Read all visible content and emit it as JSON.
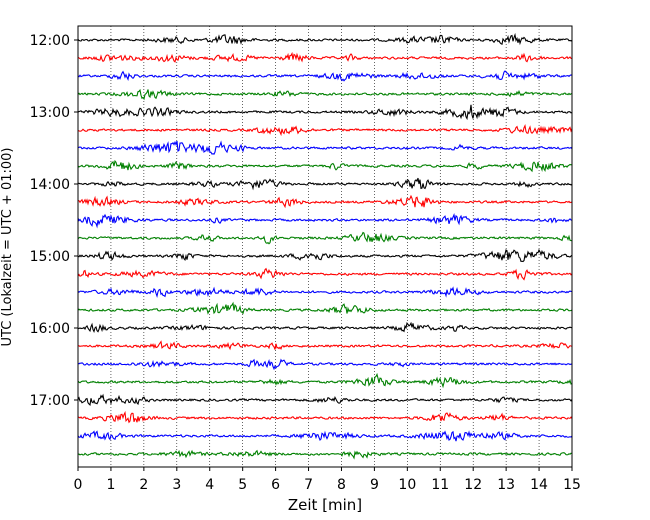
{
  "chart_data": {
    "type": "line",
    "title": "",
    "xlabel": "Zeit  [min]",
    "ylabel": "UTC (Lokalzeit = UTC + 01:00)",
    "xlim": [
      0,
      15
    ],
    "x_ticks": [
      "0",
      "1",
      "2",
      "3",
      "4",
      "5",
      "6",
      "7",
      "8",
      "9",
      "10",
      "11",
      "12",
      "13",
      "14",
      "15"
    ],
    "y_tick_labels": [
      "12:00",
      "13:00",
      "14:00",
      "15:00",
      "16:00",
      "17:00"
    ],
    "grid": "vertical dotted lines at every minute",
    "trace_interval_minutes": 15,
    "trace_start_times_utc": [
      "12:00",
      "12:15",
      "12:30",
      "12:45",
      "13:00",
      "13:15",
      "13:30",
      "13:45",
      "14:00",
      "14:15",
      "14:30",
      "14:45",
      "15:00",
      "15:15",
      "15:30",
      "15:45",
      "16:00",
      "16:15",
      "16:30",
      "16:45",
      "17:00",
      "17:15",
      "17:30",
      "17:45"
    ],
    "trace_color_cycle": [
      "#000000",
      "#ff0000",
      "#0000ff",
      "#008000"
    ]
  }
}
